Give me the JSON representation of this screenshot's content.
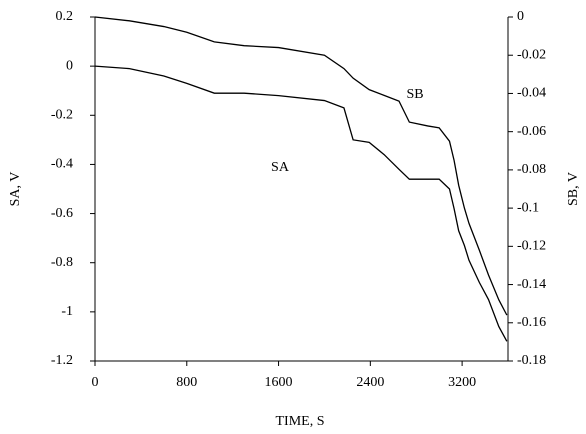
{
  "chart_data": {
    "type": "line",
    "x_label": "TIME, S",
    "y_label": "SA, V",
    "y2_label": "SB, V",
    "x": [
      0,
      300,
      600,
      800,
      1040,
      1300,
      1600,
      2000,
      2170,
      2250,
      2390,
      2520,
      2650,
      2740,
      2900,
      3000,
      3090,
      3130,
      3170,
      3220,
      3260,
      3350,
      3430,
      3520,
      3590
    ],
    "series": [
      {
        "name": "SA",
        "color": "#000000",
        "values": [
          0,
          -0.01,
          -0.04,
          -0.07,
          -0.11,
          -0.11,
          -0.12,
          -0.14,
          -0.17,
          -0.3,
          -0.31,
          -0.36,
          -0.42,
          -0.46,
          -0.46,
          -0.46,
          -0.5,
          -0.58,
          -0.67,
          -0.73,
          -0.79,
          -0.88,
          -0.95,
          -1.06,
          -1.12
        ]
      },
      {
        "name": "SB",
        "color": "#000000",
        "axis": "y2",
        "values": [
          0,
          -0.002,
          -0.005,
          -0.008,
          -0.013,
          -0.015,
          -0.016,
          -0.02,
          -0.027,
          -0.032,
          -0.038,
          -0.041,
          -0.044,
          -0.055,
          -0.057,
          -0.058,
          -0.065,
          -0.075,
          -0.088,
          -0.1,
          -0.108,
          -0.122,
          -0.135,
          -0.148,
          -0.156
        ]
      }
    ],
    "xlim": [
      0,
      3600
    ],
    "xticks": [
      0,
      800,
      1600,
      2400,
      3200
    ],
    "ylim": [
      -1.2,
      0.2
    ],
    "yticks": [
      0.2,
      0,
      -0.2,
      -0.4,
      -0.6,
      -0.8,
      -1,
      -1.2
    ],
    "y2lim": [
      -0.18,
      0
    ],
    "y2ticks": [
      0,
      -0.02,
      -0.04,
      -0.06,
      -0.08,
      -0.1,
      -0.12,
      -0.14,
      -0.16,
      -0.18
    ],
    "grid": false
  }
}
